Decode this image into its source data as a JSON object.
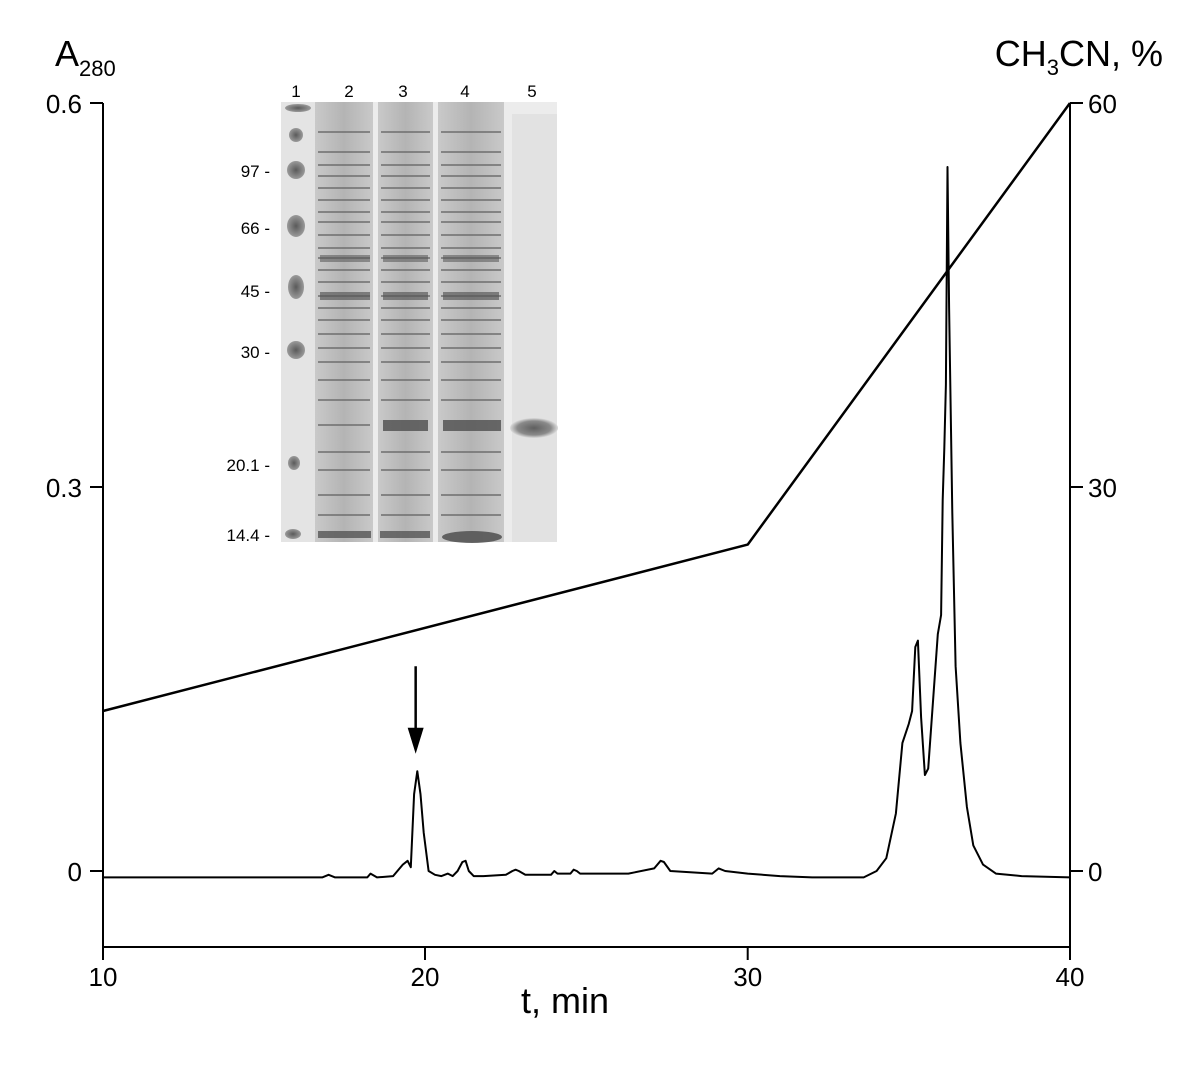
{
  "chart_data": {
    "type": "line",
    "title": "",
    "xlabel": "t, min",
    "ylabel_left": {
      "main": "A",
      "sub": "280"
    },
    "ylabel_right": {
      "pre": "CH",
      "sub": "3",
      "post": "CN, %"
    },
    "xlim": [
      10,
      40
    ],
    "ylim_left": [
      -0.05,
      0.6
    ],
    "ylim_right": [
      -5,
      60
    ],
    "x_ticks": [
      "10",
      "20",
      "30",
      "40"
    ],
    "y_left_ticks": [
      "0",
      "0.3",
      "0.6"
    ],
    "y_right_ticks": [
      "0",
      "30",
      "60"
    ],
    "grid": false,
    "legend": "none",
    "series": [
      {
        "name": "",
        "axis": "left",
        "x": [
          10,
          12,
          15,
          16.8,
          17.0,
          17.2,
          18.0,
          18.2,
          18.3,
          18.5,
          19.0,
          19.3,
          19.45,
          19.55,
          19.65,
          19.75,
          19.85,
          19.95,
          20.1,
          20.3,
          20.5,
          20.7,
          20.85,
          21.0,
          21.15,
          21.25,
          21.35,
          21.5,
          21.8,
          22.5,
          22.7,
          22.8,
          22.9,
          23.1,
          23.9,
          24.0,
          24.1,
          24.5,
          24.6,
          24.7,
          24.8,
          26.3,
          26.5,
          27.1,
          27.3,
          27.4,
          27.6,
          28.9,
          29.1,
          29.3,
          30.0,
          31.0,
          32.0,
          33.0,
          33.6,
          34.0,
          34.3,
          34.6,
          34.8,
          35.0,
          35.1,
          35.2,
          35.28,
          35.38,
          35.5,
          35.6,
          35.7,
          35.8,
          35.9,
          36.0,
          36.05,
          36.1,
          36.15,
          36.2,
          36.25,
          36.3,
          36.35,
          36.45,
          36.6,
          36.8,
          37.0,
          37.3,
          37.7,
          38.5,
          40
        ],
        "y": [
          -0.005,
          -0.005,
          -0.005,
          -0.005,
          -0.003,
          -0.005,
          -0.005,
          -0.005,
          -0.002,
          -0.005,
          -0.004,
          0.005,
          0.008,
          0.003,
          0.06,
          0.078,
          0.06,
          0.03,
          0.0,
          -0.003,
          -0.004,
          -0.002,
          -0.004,
          0.0,
          0.007,
          0.008,
          0.0,
          -0.004,
          -0.004,
          -0.003,
          0.0,
          0.001,
          0.0,
          -0.003,
          -0.003,
          0.0,
          -0.002,
          -0.002,
          0.001,
          0.0,
          -0.002,
          -0.002,
          -0.001,
          0.002,
          0.008,
          0.007,
          0.0,
          -0.002,
          0.002,
          0.0,
          -0.002,
          -0.004,
          -0.005,
          -0.005,
          -0.005,
          0.0,
          0.01,
          0.045,
          0.1,
          0.115,
          0.125,
          0.175,
          0.18,
          0.12,
          0.075,
          0.08,
          0.115,
          0.15,
          0.185,
          0.2,
          0.29,
          0.33,
          0.38,
          0.55,
          0.44,
          0.36,
          0.28,
          0.16,
          0.1,
          0.05,
          0.02,
          0.005,
          -0.002,
          -0.004,
          -0.005
        ]
      },
      {
        "name": "",
        "axis": "right",
        "x": [
          10,
          30,
          40
        ],
        "y": [
          12.5,
          25.5,
          60
        ]
      }
    ],
    "annotations": [
      {
        "type": "arrow",
        "x": 19.7,
        "y_from": 0.16,
        "y_to": 0.09
      }
    ],
    "inset": {
      "kind": "SDS-PAGE gel image",
      "lane_labels": [
        "1",
        "2",
        "3",
        "4",
        "5"
      ],
      "marker_labels": [
        "97 -",
        "66 -",
        "45 -",
        "30 -",
        "20.1 -",
        "14.4 -"
      ]
    }
  }
}
